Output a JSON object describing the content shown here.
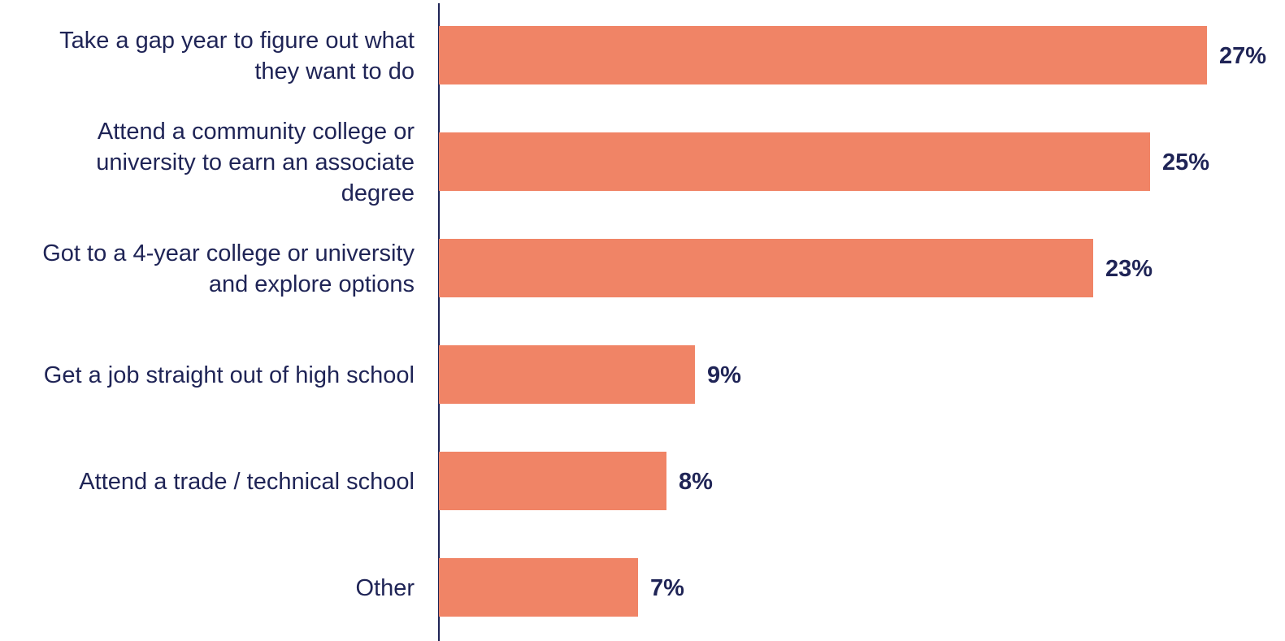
{
  "colors": {
    "bar": "#f08466",
    "text": "#1f2456",
    "axis": "#1f2456",
    "background": "#ffffff"
  },
  "chart_data": {
    "type": "bar",
    "orientation": "horizontal",
    "title": "",
    "xlabel": "",
    "ylabel": "",
    "grid": false,
    "legend": "none",
    "xlim": [
      0,
      27
    ],
    "categories": [
      [
        "Take a gap year to figure out what",
        "they want to do"
      ],
      [
        "Attend a community college or",
        "university to earn an associate",
        "degree"
      ],
      [
        "Got to a 4-year college or university",
        "and explore options"
      ],
      [
        "Get a job straight out of high school"
      ],
      [
        "Attend a trade / technical school"
      ],
      [
        "Other"
      ]
    ],
    "values": [
      27,
      25,
      23,
      9,
      8,
      7
    ],
    "value_labels": [
      "27%",
      "25%",
      "23%",
      "9%",
      "8%",
      "7%"
    ]
  }
}
